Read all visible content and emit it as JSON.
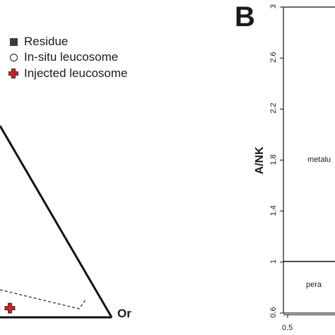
{
  "legend": {
    "items": [
      {
        "label": "Residue",
        "marker": "filled-square",
        "color": "#3b3b3b"
      },
      {
        "label": "In-situ leucosome",
        "marker": "open-circle",
        "color": "#1a1a1a"
      },
      {
        "label": "Injected leucosome",
        "marker": "red-cross",
        "color": "#d0202a"
      }
    ]
  },
  "panel_a": {
    "vertex_label": "Or"
  },
  "chart_data": {
    "type": "scatter",
    "panel_label": "B",
    "ylabel": "A/NK",
    "ylim": [
      0.6,
      3
    ],
    "yticks": [
      "0.6",
      "1",
      "1.4",
      "1.8",
      "2.2",
      "2.6",
      "3"
    ],
    "xticks": [
      "0.5"
    ],
    "reference_line_y": 1,
    "region_labels": [
      "metalu",
      "pera"
    ],
    "series": []
  }
}
